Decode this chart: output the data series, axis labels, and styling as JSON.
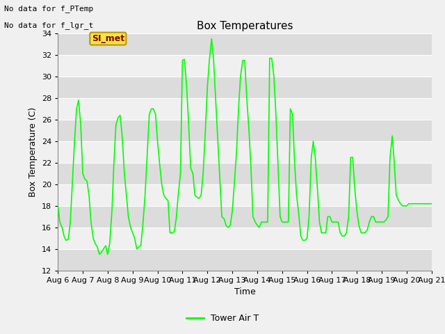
{
  "title": "Box Temperatures",
  "ylabel": "Box Temperature (C)",
  "xlabel": "Time",
  "ylim": [
    12,
    34
  ],
  "yticks": [
    12,
    14,
    16,
    18,
    20,
    22,
    24,
    26,
    28,
    30,
    32,
    34
  ],
  "line_color": "#00FF00",
  "line_width": 1.2,
  "fig_bg_color": "#F0F0F0",
  "plot_bg_color": "#FFFFFF",
  "band_color_dark": "#DCDCDC",
  "band_color_light": "#F0F0F0",
  "title_fontsize": 11,
  "axis_label_fontsize": 9,
  "tick_fontsize": 8,
  "no_data_texts": [
    "No data for f_PTemp",
    "No data for f_lgr_t"
  ],
  "si_met_label": "SI_met",
  "legend_label": "Tower Air T",
  "x_tick_labels": [
    "Aug 6",
    "Aug 7",
    "Aug 8",
    "Aug 9",
    "Aug 10",
    "Aug 11",
    "Aug 12",
    "Aug 13",
    "Aug 14",
    "Aug 15",
    "Aug 16",
    "Aug 17",
    "Aug 18",
    "Aug 19",
    "Aug 20",
    "Aug 21"
  ],
  "x_tick_positions": [
    0,
    1,
    2,
    3,
    4,
    5,
    6,
    7,
    8,
    9,
    10,
    11,
    12,
    13,
    14,
    15
  ],
  "data_x": [
    0,
    0.08,
    0.17,
    0.25,
    0.33,
    0.42,
    0.5,
    0.58,
    0.67,
    0.75,
    0.83,
    0.92,
    1.0,
    1.08,
    1.17,
    1.25,
    1.33,
    1.42,
    1.5,
    1.58,
    1.67,
    1.75,
    1.83,
    1.92,
    2.0,
    2.08,
    2.17,
    2.25,
    2.33,
    2.42,
    2.5,
    2.58,
    2.67,
    2.75,
    2.83,
    2.92,
    3.0,
    3.08,
    3.17,
    3.25,
    3.33,
    3.42,
    3.5,
    3.58,
    3.67,
    3.75,
    3.83,
    3.92,
    4.0,
    4.08,
    4.17,
    4.25,
    4.33,
    4.42,
    4.5,
    4.58,
    4.67,
    4.75,
    4.83,
    4.92,
    5.0,
    5.08,
    5.17,
    5.25,
    5.33,
    5.42,
    5.5,
    5.58,
    5.67,
    5.75,
    5.83,
    5.92,
    6.0,
    6.08,
    6.17,
    6.25,
    6.33,
    6.42,
    6.5,
    6.58,
    6.67,
    6.75,
    6.83,
    6.92,
    7.0,
    7.08,
    7.17,
    7.25,
    7.33,
    7.42,
    7.5,
    7.58,
    7.67,
    7.75,
    7.83,
    7.92,
    8.0,
    8.08,
    8.17,
    8.25,
    8.33,
    8.42,
    8.5,
    8.58,
    8.67,
    8.75,
    8.83,
    8.92,
    9.0,
    9.08,
    9.17,
    9.25,
    9.33,
    9.42,
    9.5,
    9.58,
    9.67,
    9.75,
    9.83,
    9.92,
    10.0,
    10.08,
    10.17,
    10.25,
    10.33,
    10.42,
    10.5,
    10.58,
    10.67,
    10.75,
    10.83,
    10.92,
    11.0,
    11.08,
    11.17,
    11.25,
    11.33,
    11.42,
    11.5,
    11.58,
    11.67,
    11.75,
    11.83,
    11.92,
    12.0,
    12.08,
    12.17,
    12.25,
    12.33,
    12.42,
    12.5,
    12.58,
    12.67,
    12.75,
    12.83,
    12.92,
    13.0,
    13.08,
    13.17,
    13.25,
    13.33,
    13.42,
    13.5,
    13.58,
    13.67,
    13.75,
    13.83,
    13.92,
    14.0,
    14.08,
    14.17,
    14.25,
    14.33,
    14.42,
    14.5,
    14.58,
    14.67,
    14.75,
    14.83,
    14.92,
    15.0
  ],
  "data_y": [
    18.0,
    16.5,
    16.0,
    15.2,
    14.8,
    14.9,
    16.5,
    20.0,
    24.0,
    27.0,
    27.8,
    25.5,
    21.0,
    20.5,
    20.3,
    19.0,
    16.5,
    15.0,
    14.5,
    14.2,
    13.5,
    13.7,
    14.0,
    14.3,
    13.5,
    14.5,
    17.5,
    22.0,
    25.5,
    26.2,
    26.4,
    24.5,
    21.0,
    19.0,
    17.0,
    16.0,
    15.5,
    15.0,
    14.0,
    14.2,
    14.3,
    16.5,
    19.0,
    22.5,
    26.5,
    27.0,
    27.0,
    26.5,
    24.0,
    22.0,
    20.0,
    19.0,
    18.7,
    18.5,
    15.5,
    15.5,
    15.6,
    16.8,
    19.0,
    21.0,
    31.5,
    31.6,
    29.0,
    25.5,
    21.5,
    21.0,
    19.0,
    18.8,
    18.7,
    19.0,
    21.0,
    25.0,
    29.0,
    31.5,
    33.5,
    31.5,
    28.0,
    24.0,
    20.5,
    17.0,
    16.8,
    16.2,
    16.0,
    16.2,
    17.5,
    20.0,
    23.0,
    27.0,
    30.0,
    31.5,
    31.5,
    28.0,
    25.0,
    21.5,
    17.0,
    16.5,
    16.2,
    16.0,
    16.5,
    16.5,
    16.5,
    16.5,
    31.7,
    31.7,
    30.0,
    26.5,
    22.0,
    17.0,
    16.5,
    16.5,
    16.5,
    16.5,
    27.0,
    26.5,
    22.0,
    19.0,
    17.2,
    15.2,
    14.8,
    14.8,
    15.0,
    17.0,
    22.5,
    24.0,
    22.5,
    19.5,
    16.5,
    15.5,
    15.5,
    15.5,
    17.0,
    17.0,
    16.5,
    16.5,
    16.5,
    16.5,
    15.5,
    15.2,
    15.2,
    15.5,
    17.0,
    22.5,
    22.5,
    19.5,
    17.5,
    16.2,
    15.5,
    15.5,
    15.5,
    15.8,
    16.5,
    17.0,
    17.0,
    16.5,
    16.5,
    16.5,
    16.5,
    16.5,
    16.7,
    17.0,
    22.5,
    24.5,
    22.0,
    19.0,
    18.5,
    18.2,
    18.0,
    18.0,
    18.0,
    18.2,
    18.2,
    18.2,
    18.2,
    18.2,
    18.2,
    18.2,
    18.2,
    18.2,
    18.2,
    18.2,
    18.2
  ]
}
